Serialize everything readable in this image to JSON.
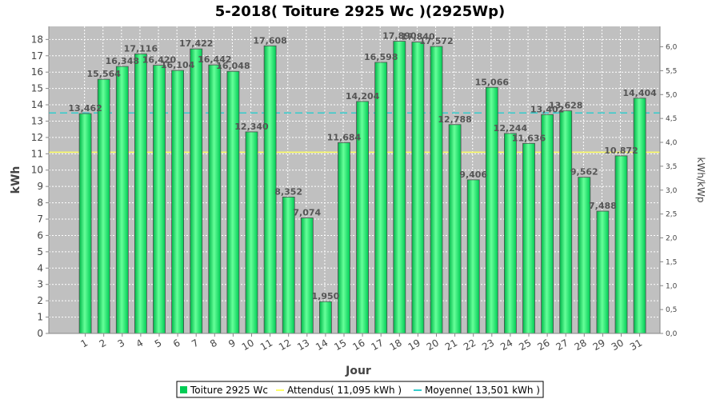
{
  "chart_data": {
    "type": "bar",
    "title": "5-2018( Toiture 2925 Wc )(2925Wp)",
    "xlabel": "Jour",
    "ylabel": "kWh",
    "ylabel_right": "kWh/kWp",
    "categories": [
      "1",
      "2",
      "3",
      "4",
      "5",
      "6",
      "7",
      "8",
      "9",
      "10",
      "11",
      "12",
      "13",
      "14",
      "15",
      "16",
      "17",
      "18",
      "19",
      "20",
      "21",
      "22",
      "23",
      "24",
      "25",
      "26",
      "27",
      "28",
      "29",
      "30",
      "31"
    ],
    "values": [
      13.462,
      15.564,
      16.348,
      17.116,
      16.42,
      16.104,
      17.422,
      16.442,
      16.048,
      12.34,
      17.608,
      8.352,
      7.074,
      1.95,
      11.684,
      14.204,
      16.598,
      17.89,
      17.84,
      17.572,
      12.788,
      9.406,
      15.066,
      12.244,
      11.636,
      13.402,
      13.628,
      9.562,
      7.488,
      10.872,
      14.404
    ],
    "value_labels": [
      "13,462",
      "15,564",
      "16,348",
      "17,116",
      "16,420",
      "16,104",
      "17,422",
      "16,442",
      "16,048",
      "12,340",
      "17,608",
      "8,352",
      "7,074",
      "1,950",
      "11,684",
      "14,204",
      "16,598",
      "17,890",
      "17,840",
      "17,572",
      "12,788",
      "9,406",
      "15,066",
      "12,244",
      "11,636",
      "13,402",
      "13,628",
      "9,562",
      "7,488",
      "10.872",
      "14,404"
    ],
    "ylim": [
      0,
      18.8
    ],
    "yticks": [
      "0",
      "1",
      "2",
      "3",
      "4",
      "5",
      "6",
      "7",
      "8",
      "9",
      "10",
      "11",
      "12",
      "13",
      "14",
      "15",
      "16",
      "17",
      "18"
    ],
    "y2ticks": [
      "0,0",
      "0,5",
      "1,0",
      "1,5",
      "2,0",
      "2,5",
      "3,0",
      "3,5",
      "4,0",
      "4,5",
      "5,0",
      "5,5",
      "6,0"
    ],
    "y2_per_kwh": 0.3418803,
    "expected_value": 11.095,
    "average_value": 13.501,
    "grid": true,
    "colors": {
      "bar": "#00cc55",
      "bar_light": "#66ff99",
      "expected_line": "#ffff66",
      "average_line": "#33cccc",
      "plot_bg": "#c0c0c0"
    },
    "legend": {
      "position": "bottom",
      "items": [
        {
          "label": "Toiture 2925 Wc",
          "kind": "box",
          "color": "#00cc55"
        },
        {
          "label": "Attendus( 11,095 kWh )",
          "kind": "line",
          "color": "#ffff66"
        },
        {
          "label": "Moyenne( 13,501 kWh )",
          "kind": "dash",
          "color": "#33cccc"
        }
      ]
    }
  }
}
